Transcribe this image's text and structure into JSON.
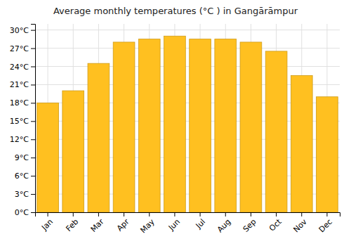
{
  "chart_data": {
    "type": "bar",
    "title": "Average monthly temperatures (°C ) in Gangārāmpur",
    "categories": [
      "Jan",
      "Feb",
      "Mar",
      "Apr",
      "May",
      "Jun",
      "Jul",
      "Aug",
      "Sep",
      "Oct",
      "Nov",
      "Dec"
    ],
    "values": [
      18.0,
      20.0,
      24.5,
      28.0,
      28.5,
      29.0,
      28.5,
      28.5,
      28.0,
      26.5,
      22.5,
      19.0
    ],
    "color": "#FFC020",
    "ylim": [
      0,
      31
    ],
    "yticks": [
      {
        "value": 0,
        "label": "0°C"
      },
      {
        "value": 3,
        "label": "3°C"
      },
      {
        "value": 6,
        "label": "6°C"
      },
      {
        "value": 9,
        "label": "9°C"
      },
      {
        "value": 12,
        "label": "12°C"
      },
      {
        "value": 15,
        "label": "15°C"
      },
      {
        "value": 18,
        "label": "18°C"
      },
      {
        "value": 21,
        "label": "21°C"
      },
      {
        "value": 24,
        "label": "24°C"
      },
      {
        "value": 27,
        "label": "27°C"
      },
      {
        "value": 30,
        "label": "30°C"
      }
    ],
    "grid": true
  }
}
